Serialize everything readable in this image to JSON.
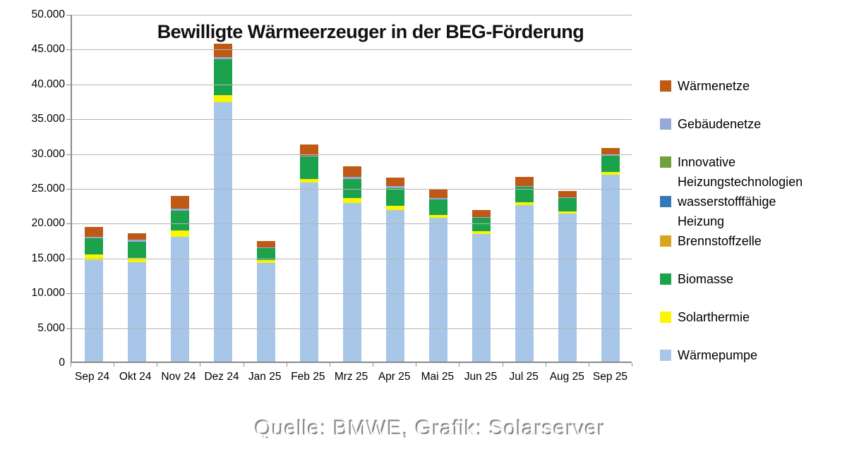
{
  "title": "Bewilligte Wärmeerzeuger in der BEG-Förderung",
  "footer": "Quelle: BMWE, Grafik: Solarserver",
  "chart_data": {
    "type": "bar",
    "stacked": true,
    "title": "Bewilligte Wärmeerzeuger in der BEG-Förderung",
    "legend_position": "right",
    "grid": true,
    "categories": [
      "Sep 24",
      "Okt 24",
      "Nov 24",
      "Dez 24",
      "Jan 25",
      "Feb 25",
      "Mrz 25",
      "Apr 25",
      "Mai 25",
      "Jun 25",
      "Jul 25",
      "Aug 25",
      "Sep 25"
    ],
    "y_axis": {
      "min": 0,
      "max": 50000,
      "step": 5000,
      "ticks": [
        "50.000",
        "45.000",
        "40.000",
        "35.000",
        "30.000",
        "25.000",
        "20.000",
        "15.000",
        "10.000",
        "5.000",
        "0"
      ]
    },
    "series": [
      {
        "name": "Wärmepumpe",
        "legend_lines": [
          "Wärmepumpe"
        ],
        "color": "#A8C6E8",
        "values": [
          14600,
          14300,
          17900,
          37200,
          14200,
          25700,
          22800,
          21800,
          20600,
          18300,
          22500,
          21250,
          26850
        ]
      },
      {
        "name": "Solarthermie",
        "legend_lines": [
          "Solarthermie"
        ],
        "color": "#FAF600",
        "values": [
          740,
          610,
          940,
          1100,
          410,
          500,
          680,
          580,
          450,
          450,
          400,
          350,
          400
        ]
      },
      {
        "name": "Biomasse",
        "legend_lines": [
          "Biomasse"
        ],
        "color": "#1CA24C",
        "values": [
          2400,
          2330,
          2800,
          5100,
          1700,
          3300,
          2770,
          2530,
          2200,
          1950,
          2200,
          1850,
          2300
        ]
      },
      {
        "name": "Brennstoffzelle",
        "legend_lines": [
          "Brennstoffzelle"
        ],
        "color": "#D9A521",
        "values": [
          0,
          0,
          0,
          0,
          0,
          0,
          0,
          0,
          0,
          0,
          0,
          0,
          0
        ]
      },
      {
        "name": "wasserstofffähige Heizung",
        "legend_lines": [
          "wasserstofffähige",
          "Heizung"
        ],
        "color": "#3579B8",
        "values": [
          0,
          0,
          0,
          0,
          0,
          0,
          0,
          0,
          0,
          0,
          0,
          0,
          0
        ]
      },
      {
        "name": "Innovative Heizungstechnologien",
        "legend_lines": [
          "Innovative",
          "Heizungstechnologien"
        ],
        "color": "#6FA03C",
        "values": [
          0,
          0,
          0,
          0,
          0,
          0,
          0,
          0,
          0,
          0,
          0,
          0,
          0
        ]
      },
      {
        "name": "Gebäudenetze",
        "legend_lines": [
          "Gebäudenetze"
        ],
        "color": "#97A9D8",
        "values": [
          230,
          260,
          340,
          300,
          100,
          100,
          270,
          340,
          250,
          100,
          150,
          100,
          150
        ]
      },
      {
        "name": "Wärmenetze",
        "legend_lines": [
          "Wärmenetze"
        ],
        "color": "#BE5A15",
        "values": [
          1360,
          960,
          1860,
          2000,
          910,
          1600,
          1480,
          1180,
          1200,
          1000,
          1250,
          950,
          1000
        ]
      }
    ]
  },
  "colors": {
    "axis": "#8a8a8a",
    "grid": "#b5b5b5",
    "background": "#ffffff"
  }
}
